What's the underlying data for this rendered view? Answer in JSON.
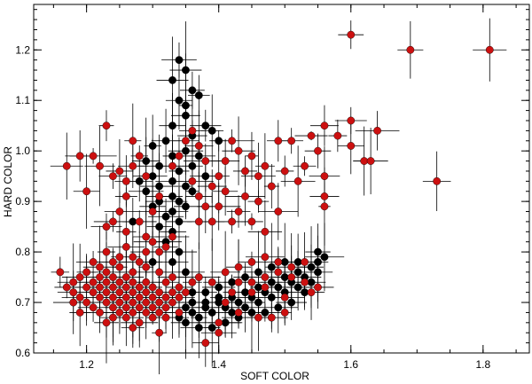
{
  "chart_data": {
    "type": "scatter",
    "title": "",
    "xlabel": "SOFT COLOR",
    "ylabel": "HARD COLOR",
    "xlim": [
      1.12,
      1.87
    ],
    "ylim": [
      0.6,
      1.29
    ],
    "x_ticks": [
      1.2,
      1.4,
      1.6,
      1.8
    ],
    "y_ticks": [
      0.6,
      0.7,
      0.8,
      0.9,
      1.0,
      1.1,
      1.2
    ],
    "x_tick_labels": [
      "1.2",
      "1.4",
      "1.6",
      "1.8"
    ],
    "y_tick_labels": [
      "0.6",
      "0.7",
      "0.8",
      "0.9",
      "1.0",
      "1.1",
      "1.2"
    ],
    "error_bars": true,
    "grid": false,
    "series": [
      {
        "color": "#000000",
        "points": [
          [
            1.34,
            1.18
          ],
          [
            1.35,
            1.16
          ],
          [
            1.33,
            1.14
          ],
          [
            1.36,
            1.12
          ],
          [
            1.34,
            1.1
          ],
          [
            1.35,
            1.09
          ],
          [
            1.37,
            1.11
          ],
          [
            1.35,
            1.07
          ],
          [
            1.38,
            1.05
          ],
          [
            1.33,
            1.05
          ],
          [
            1.39,
            1.04
          ],
          [
            1.36,
            1.03
          ],
          [
            1.32,
            1.02
          ],
          [
            1.4,
            1.02
          ],
          [
            1.3,
            1.01
          ],
          [
            1.35,
            1.0
          ],
          [
            1.37,
            0.99
          ],
          [
            1.33,
            0.99
          ],
          [
            1.29,
            0.98
          ],
          [
            1.31,
            0.97
          ],
          [
            1.36,
            0.97
          ],
          [
            1.34,
            0.96
          ],
          [
            1.38,
            0.95
          ],
          [
            1.3,
            0.95
          ],
          [
            1.33,
            0.94
          ],
          [
            1.28,
            0.94
          ],
          [
            1.35,
            0.93
          ],
          [
            1.31,
            0.93
          ],
          [
            1.36,
            0.92
          ],
          [
            1.29,
            0.92
          ],
          [
            1.33,
            0.91
          ],
          [
            1.34,
            0.9
          ],
          [
            1.31,
            0.9
          ],
          [
            1.35,
            0.89
          ],
          [
            1.3,
            0.89
          ],
          [
            1.33,
            0.88
          ],
          [
            1.32,
            0.87
          ],
          [
            1.34,
            0.86
          ],
          [
            1.27,
            0.86
          ],
          [
            1.31,
            0.85
          ],
          [
            1.33,
            0.84
          ],
          [
            1.32,
            0.82
          ],
          [
            1.34,
            0.8
          ],
          [
            1.33,
            0.78
          ],
          [
            1.35,
            0.76
          ],
          [
            1.3,
            0.78
          ],
          [
            1.35,
            0.66
          ],
          [
            1.36,
            0.68
          ],
          [
            1.37,
            0.67
          ],
          [
            1.38,
            0.69
          ],
          [
            1.39,
            0.68
          ],
          [
            1.4,
            0.7
          ],
          [
            1.41,
            0.69
          ],
          [
            1.42,
            0.71
          ],
          [
            1.43,
            0.7
          ],
          [
            1.44,
            0.72
          ],
          [
            1.45,
            0.71
          ],
          [
            1.46,
            0.73
          ],
          [
            1.47,
            0.72
          ],
          [
            1.48,
            0.74
          ],
          [
            1.49,
            0.73
          ],
          [
            1.5,
            0.75
          ],
          [
            1.51,
            0.74
          ],
          [
            1.52,
            0.76
          ],
          [
            1.53,
            0.75
          ],
          [
            1.54,
            0.77
          ],
          [
            1.55,
            0.78
          ],
          [
            1.56,
            0.79
          ],
          [
            1.55,
            0.8
          ],
          [
            1.53,
            0.72
          ],
          [
            1.51,
            0.7
          ],
          [
            1.49,
            0.69
          ],
          [
            1.47,
            0.68
          ],
          [
            1.45,
            0.68
          ],
          [
            1.43,
            0.67
          ],
          [
            1.41,
            0.66
          ],
          [
            1.39,
            0.65
          ],
          [
            1.37,
            0.65
          ],
          [
            1.36,
            0.7
          ],
          [
            1.38,
            0.72
          ],
          [
            1.4,
            0.73
          ],
          [
            1.42,
            0.74
          ],
          [
            1.44,
            0.75
          ],
          [
            1.46,
            0.76
          ],
          [
            1.48,
            0.77
          ],
          [
            1.5,
            0.78
          ],
          [
            1.52,
            0.78
          ],
          [
            1.54,
            0.74
          ],
          [
            1.5,
            0.72
          ],
          [
            1.46,
            0.7
          ],
          [
            1.42,
            0.68
          ],
          [
            1.38,
            0.7
          ],
          [
            1.36,
            0.72
          ],
          [
            1.4,
            0.71
          ],
          [
            1.44,
            0.69
          ],
          [
            1.48,
            0.71
          ],
          [
            1.52,
            0.73
          ],
          [
            1.55,
            0.76
          ],
          [
            1.34,
            0.67
          ],
          [
            1.35,
            0.69
          ]
        ]
      },
      {
        "color": "#cc1010",
        "points": [
          [
            1.6,
            1.23
          ],
          [
            1.69,
            1.2
          ],
          [
            1.81,
            1.2
          ],
          [
            1.73,
            0.94
          ],
          [
            1.6,
            1.06
          ],
          [
            1.64,
            1.04
          ],
          [
            1.62,
            0.98
          ],
          [
            1.63,
            0.98
          ],
          [
            1.6,
            1.01
          ],
          [
            1.56,
            1.05
          ],
          [
            1.58,
            1.03
          ],
          [
            1.55,
            1.0
          ],
          [
            1.56,
            0.95
          ],
          [
            1.56,
            0.91
          ],
          [
            1.56,
            0.89
          ],
          [
            1.53,
            0.97
          ],
          [
            1.54,
            1.03
          ],
          [
            1.51,
            1.02
          ],
          [
            1.49,
            1.02
          ],
          [
            1.47,
            0.97
          ],
          [
            1.46,
            0.95
          ],
          [
            1.44,
            0.96
          ],
          [
            1.43,
            1.0
          ],
          [
            1.42,
            1.02
          ],
          [
            1.41,
            0.98
          ],
          [
            1.4,
            0.95
          ],
          [
            1.39,
            0.93
          ],
          [
            1.38,
            0.98
          ],
          [
            1.37,
            1.01
          ],
          [
            1.36,
            1.04
          ],
          [
            1.44,
            0.91
          ],
          [
            1.43,
            0.88
          ],
          [
            1.42,
            0.86
          ],
          [
            1.46,
            0.9
          ],
          [
            1.48,
            0.93
          ],
          [
            1.5,
            0.96
          ],
          [
            1.45,
            0.99
          ],
          [
            1.41,
            0.92
          ],
          [
            1.4,
            0.89
          ],
          [
            1.39,
            0.86
          ],
          [
            1.45,
            0.86
          ],
          [
            1.47,
            0.84
          ],
          [
            1.49,
            0.88
          ],
          [
            1.52,
            0.94
          ],
          [
            1.17,
            0.97
          ],
          [
            1.19,
            0.99
          ],
          [
            1.21,
            0.99
          ],
          [
            1.22,
            0.97
          ],
          [
            1.23,
            1.05
          ],
          [
            1.2,
            0.92
          ],
          [
            1.24,
            0.95
          ],
          [
            1.25,
            0.96
          ],
          [
            1.26,
            0.94
          ],
          [
            1.27,
            1.02
          ],
          [
            1.27,
            0.97
          ],
          [
            1.28,
            0.99
          ],
          [
            1.26,
            0.91
          ],
          [
            1.25,
            0.88
          ],
          [
            1.24,
            0.86
          ],
          [
            1.23,
            0.85
          ],
          [
            1.26,
            0.84
          ],
          [
            1.28,
            0.86
          ],
          [
            1.29,
            0.83
          ],
          [
            1.3,
            0.82
          ],
          [
            1.29,
            0.8
          ],
          [
            1.28,
            0.78
          ],
          [
            1.27,
            0.79
          ],
          [
            1.26,
            0.81
          ],
          [
            1.25,
            0.79
          ],
          [
            1.24,
            0.78
          ],
          [
            1.31,
            0.8
          ],
          [
            1.32,
            0.81
          ],
          [
            1.33,
            0.83
          ],
          [
            1.3,
            0.88
          ],
          [
            1.31,
            0.91
          ],
          [
            1.29,
            0.95
          ],
          [
            1.33,
            0.97
          ],
          [
            1.34,
            0.99
          ],
          [
            1.35,
            1.02
          ],
          [
            1.36,
            0.94
          ],
          [
            1.37,
            0.91
          ],
          [
            1.38,
            0.89
          ],
          [
            1.37,
            0.86
          ],
          [
            1.16,
            0.76
          ],
          [
            1.17,
            0.73
          ],
          [
            1.18,
            0.72
          ],
          [
            1.18,
            0.74
          ],
          [
            1.19,
            0.71
          ],
          [
            1.19,
            0.75
          ],
          [
            1.2,
            0.7
          ],
          [
            1.2,
            0.73
          ],
          [
            1.2,
            0.76
          ],
          [
            1.21,
            0.72
          ],
          [
            1.21,
            0.74
          ],
          [
            1.21,
            0.69
          ],
          [
            1.22,
            0.71
          ],
          [
            1.22,
            0.73
          ],
          [
            1.22,
            0.75
          ],
          [
            1.22,
            0.77
          ],
          [
            1.23,
            0.7
          ],
          [
            1.23,
            0.72
          ],
          [
            1.23,
            0.74
          ],
          [
            1.23,
            0.76
          ],
          [
            1.24,
            0.69
          ],
          [
            1.24,
            0.71
          ],
          [
            1.24,
            0.73
          ],
          [
            1.24,
            0.75
          ],
          [
            1.25,
            0.68
          ],
          [
            1.25,
            0.7
          ],
          [
            1.25,
            0.72
          ],
          [
            1.25,
            0.74
          ],
          [
            1.26,
            0.69
          ],
          [
            1.26,
            0.71
          ],
          [
            1.26,
            0.73
          ],
          [
            1.26,
            0.75
          ],
          [
            1.27,
            0.68
          ],
          [
            1.27,
            0.7
          ],
          [
            1.27,
            0.72
          ],
          [
            1.27,
            0.74
          ],
          [
            1.28,
            0.69
          ],
          [
            1.28,
            0.71
          ],
          [
            1.28,
            0.73
          ],
          [
            1.29,
            0.68
          ],
          [
            1.29,
            0.7
          ],
          [
            1.29,
            0.72
          ],
          [
            1.29,
            0.74
          ],
          [
            1.3,
            0.69
          ],
          [
            1.3,
            0.71
          ],
          [
            1.3,
            0.73
          ],
          [
            1.31,
            0.68
          ],
          [
            1.31,
            0.7
          ],
          [
            1.31,
            0.72
          ],
          [
            1.32,
            0.69
          ],
          [
            1.32,
            0.71
          ],
          [
            1.32,
            0.74
          ],
          [
            1.33,
            0.7
          ],
          [
            1.33,
            0.72
          ],
          [
            1.34,
            0.71
          ],
          [
            1.34,
            0.73
          ],
          [
            1.35,
            0.72
          ],
          [
            1.36,
            0.74
          ],
          [
            1.21,
            0.78
          ],
          [
            1.23,
            0.8
          ],
          [
            1.25,
            0.77
          ],
          [
            1.27,
            0.76
          ],
          [
            1.29,
            0.77
          ],
          [
            1.31,
            0.76
          ],
          [
            1.33,
            0.75
          ],
          [
            1.22,
            0.68
          ],
          [
            1.24,
            0.67
          ],
          [
            1.26,
            0.67
          ],
          [
            1.28,
            0.66
          ],
          [
            1.3,
            0.67
          ],
          [
            1.32,
            0.67
          ],
          [
            1.34,
            0.68
          ],
          [
            1.31,
            0.64
          ],
          [
            1.27,
            0.65
          ],
          [
            1.23,
            0.66
          ],
          [
            1.19,
            0.68
          ],
          [
            1.18,
            0.7
          ],
          [
            1.38,
            0.62
          ],
          [
            1.4,
            0.64
          ],
          [
            1.41,
            0.76
          ],
          [
            1.43,
            0.77
          ],
          [
            1.45,
            0.78
          ],
          [
            1.47,
            0.79
          ],
          [
            1.49,
            0.78
          ],
          [
            1.51,
            0.77
          ],
          [
            1.53,
            0.78
          ],
          [
            1.43,
            0.74
          ],
          [
            1.45,
            0.74
          ],
          [
            1.47,
            0.75
          ],
          [
            1.49,
            0.76
          ],
          [
            1.51,
            0.75
          ],
          [
            1.53,
            0.74
          ],
          [
            1.55,
            0.73
          ],
          [
            1.45,
            0.72
          ],
          [
            1.47,
            0.73
          ],
          [
            1.5,
            0.71
          ],
          [
            1.41,
            0.7
          ],
          [
            1.43,
            0.68
          ],
          [
            1.46,
            0.67
          ],
          [
            1.48,
            0.67
          ],
          [
            1.5,
            0.68
          ],
          [
            1.39,
            0.74
          ],
          [
            1.37,
            0.75
          ],
          [
            1.42,
            0.72
          ],
          [
            1.54,
            0.72
          ],
          [
            1.4,
            0.66
          ]
        ]
      }
    ]
  }
}
